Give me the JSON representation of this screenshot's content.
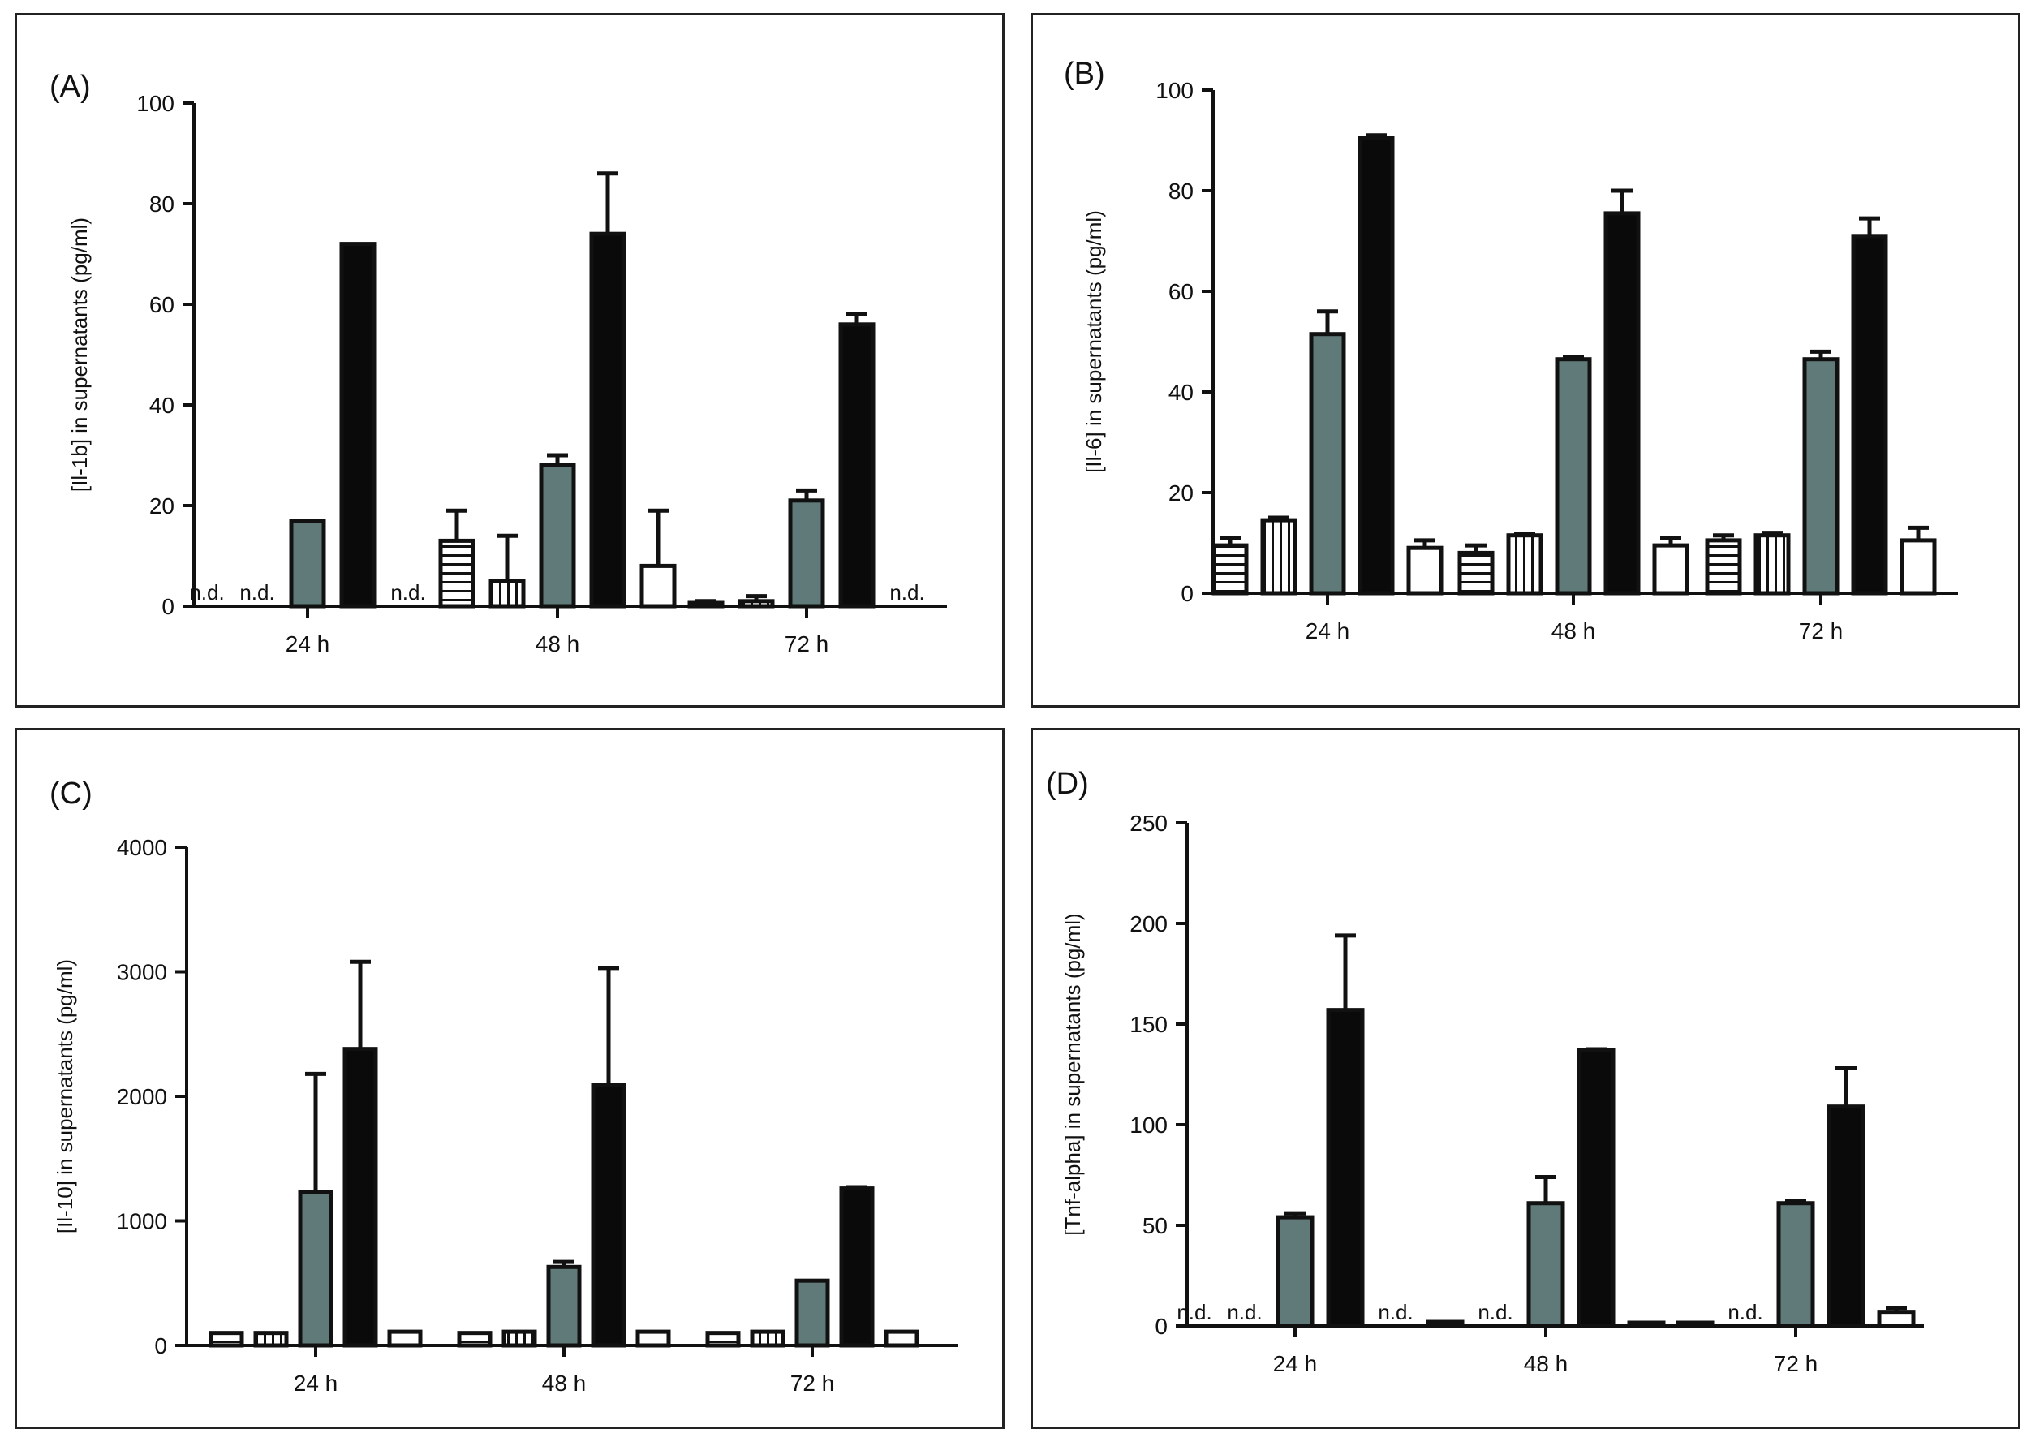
{
  "colors": {
    "grey": "#5f7a78",
    "black": "#0a0a0a",
    "white": "#ffffff",
    "edge": "#111111"
  },
  "chart_data": [
    {
      "label": "(A)",
      "type": "bar",
      "ylabel": "[Il-1b] in supernatants (pg/ml)",
      "ylim": [
        0,
        100
      ],
      "yticks": [
        "0",
        "20",
        "40",
        "60",
        "80",
        "100"
      ],
      "categories": [
        "24 h",
        "48 h",
        "72 h"
      ],
      "series": [
        {
          "name": "series-1",
          "pattern": "hstripe",
          "values": [
            null,
            13,
            0.5
          ],
          "errors": [
            null,
            6,
            0.5
          ],
          "nd": [
            "n.d.",
            "",
            ""
          ]
        },
        {
          "name": "series-2",
          "pattern": "vstripe",
          "values": [
            null,
            5,
            1
          ],
          "errors": [
            null,
            9,
            1
          ],
          "nd": [
            "n.d.",
            "",
            ""
          ]
        },
        {
          "name": "series-3",
          "pattern": "grey",
          "values": [
            17,
            28,
            21
          ],
          "errors": [
            0,
            2,
            2
          ],
          "nd": [
            "",
            "",
            ""
          ]
        },
        {
          "name": "series-4",
          "pattern": "black",
          "values": [
            72,
            74,
            56
          ],
          "errors": [
            0,
            12,
            2
          ],
          "nd": [
            "",
            "",
            ""
          ]
        },
        {
          "name": "series-5",
          "pattern": "white",
          "values": [
            null,
            8,
            null
          ],
          "errors": [
            null,
            11,
            null
          ],
          "nd": [
            "n.d.",
            "",
            "n.d."
          ]
        }
      ]
    },
    {
      "label": "(B)",
      "type": "bar",
      "ylabel": "[Il-6] in supernatants (pg/ml)",
      "ylim": [
        0,
        100
      ],
      "yticks": [
        "0",
        "20",
        "40",
        "60",
        "80",
        "100"
      ],
      "categories": [
        "24 h",
        "48 h",
        "72 h"
      ],
      "series": [
        {
          "name": "series-1",
          "pattern": "hstripe",
          "values": [
            9.5,
            8,
            10.5
          ],
          "errors": [
            1.5,
            1.5,
            1
          ],
          "nd": [
            "",
            "",
            ""
          ]
        },
        {
          "name": "series-2",
          "pattern": "vstripe",
          "values": [
            14.5,
            11.5,
            11.5
          ],
          "errors": [
            0.5,
            0.3,
            0.5
          ],
          "nd": [
            "",
            "",
            ""
          ]
        },
        {
          "name": "series-3",
          "pattern": "grey",
          "values": [
            51.5,
            46.5,
            46.5
          ],
          "errors": [
            4.5,
            0.5,
            1.5
          ],
          "nd": [
            "",
            "",
            ""
          ]
        },
        {
          "name": "series-4",
          "pattern": "black",
          "values": [
            90.5,
            75.5,
            71
          ],
          "errors": [
            0.5,
            4.5,
            3.5
          ],
          "nd": [
            "",
            "",
            ""
          ]
        },
        {
          "name": "series-5",
          "pattern": "white",
          "values": [
            9,
            9.5,
            10.5
          ],
          "errors": [
            1.5,
            1.5,
            2.5
          ],
          "nd": [
            "",
            "",
            ""
          ]
        }
      ]
    },
    {
      "label": "(C)",
      "type": "bar",
      "ylabel": "[Il-10] in supernatants (pg/ml)",
      "ylim": [
        0,
        4000
      ],
      "yticks": [
        "0",
        "1000",
        "2000",
        "3000",
        "4000"
      ],
      "categories": [
        "24 h",
        "48 h",
        "72 h"
      ],
      "series": [
        {
          "name": "series-1",
          "pattern": "hstripe",
          "values": [
            100,
            100,
            100
          ],
          "errors": [
            0,
            0,
            0
          ],
          "nd": [
            "",
            "",
            ""
          ]
        },
        {
          "name": "series-2",
          "pattern": "vstripe",
          "values": [
            100,
            110,
            110
          ],
          "errors": [
            0,
            0,
            0
          ],
          "nd": [
            "",
            "",
            ""
          ]
        },
        {
          "name": "series-3",
          "pattern": "grey",
          "values": [
            1230,
            630,
            520
          ],
          "errors": [
            950,
            40,
            0
          ],
          "nd": [
            "",
            "",
            ""
          ]
        },
        {
          "name": "series-4",
          "pattern": "black",
          "values": [
            2380,
            2090,
            1260
          ],
          "errors": [
            700,
            940,
            10
          ],
          "nd": [
            "",
            "",
            ""
          ]
        },
        {
          "name": "series-5",
          "pattern": "white",
          "values": [
            110,
            110,
            110
          ],
          "errors": [
            0,
            0,
            0
          ],
          "nd": [
            "",
            "",
            ""
          ]
        }
      ]
    },
    {
      "label": "(D)",
      "type": "bar",
      "ylabel": "[Tnf-alpha] in supernatants (pg/ml)",
      "ylim": [
        0,
        250
      ],
      "yticks": [
        "0",
        "50",
        "100",
        "150",
        "200",
        "250"
      ],
      "categories": [
        "24 h",
        "48 h",
        "72 h"
      ],
      "series": [
        {
          "name": "series-1",
          "pattern": "hstripe",
          "values": [
            null,
            2,
            0.5
          ],
          "errors": [
            null,
            0,
            0
          ],
          "nd": [
            "n.d.",
            "",
            ""
          ]
        },
        {
          "name": "series-2",
          "pattern": "vstripe",
          "values": [
            null,
            null,
            null
          ],
          "errors": [
            null,
            null,
            null
          ],
          "nd": [
            "n.d.",
            "n.d.",
            "n.d."
          ]
        },
        {
          "name": "series-3",
          "pattern": "grey",
          "values": [
            54,
            61,
            61
          ],
          "errors": [
            2,
            13,
            1
          ],
          "nd": [
            "",
            "",
            ""
          ]
        },
        {
          "name": "series-4",
          "pattern": "black",
          "values": [
            157,
            137,
            109
          ],
          "errors": [
            37,
            0.5,
            19
          ],
          "nd": [
            "",
            "",
            ""
          ]
        },
        {
          "name": "series-5",
          "pattern": "white",
          "values": [
            null,
            1,
            7
          ],
          "errors": [
            null,
            0,
            2
          ],
          "nd": [
            "n.d.",
            "",
            ""
          ]
        }
      ]
    }
  ]
}
